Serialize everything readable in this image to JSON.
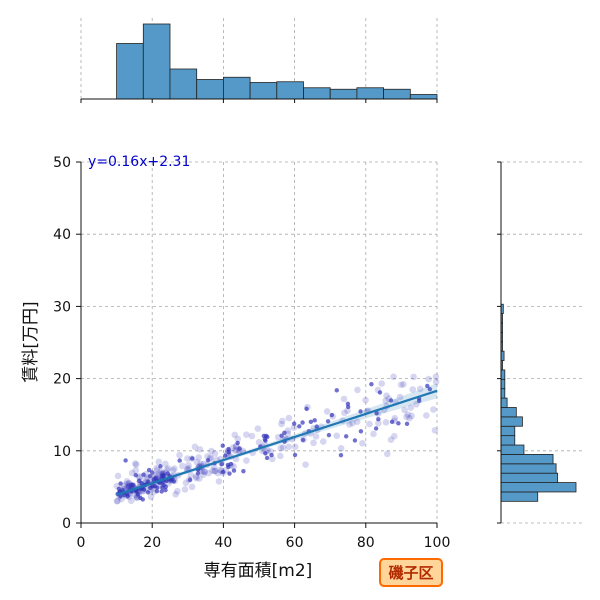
{
  "chart_data": {
    "type": "scatter",
    "title": "",
    "xlabel": "専有面積[m2]",
    "ylabel": "賃料[万円]",
    "xlim": [
      0,
      100
    ],
    "ylim": [
      0,
      50
    ],
    "x_ticks": [
      0,
      20,
      40,
      60,
      80,
      100
    ],
    "y_ticks": [
      0,
      10,
      20,
      30,
      40,
      50
    ],
    "grid": true,
    "regression": {
      "equation": "y=0.16x+2.31",
      "slope": 0.16,
      "intercept": 2.31,
      "x_range": [
        10,
        100
      ]
    },
    "marginal_x_histogram": {
      "bin_edges": [
        10,
        17.5,
        25,
        32.5,
        40,
        47.5,
        55,
        62.5,
        70,
        77.5,
        85,
        92.5,
        100
      ],
      "heights": [
        74,
        100,
        40,
        26,
        29,
        22,
        23,
        15,
        13,
        15,
        13,
        6
      ]
    },
    "marginal_y_histogram": {
      "bin_edges": [
        3,
        4.3,
        5.6,
        6.9,
        8.2,
        9.5,
        10.8,
        12.1,
        13.4,
        14.7,
        16,
        17.3,
        18.6,
        19.9,
        21.2,
        22.5,
        23.8,
        25.1,
        26.4,
        27.7,
        29,
        30.3
      ],
      "heights": [
        48,
        98,
        74,
        72,
        68,
        30,
        18,
        18,
        28,
        20,
        8,
        5,
        5,
        5,
        2,
        4,
        2,
        2,
        2,
        2,
        3
      ]
    },
    "annotation": "磯子区",
    "colors": {
      "bar": "#5499c7",
      "line": "#1f77b4",
      "point": "#3333bb",
      "badge_bg": "#ffd59a",
      "badge_border": "#ff6a00"
    }
  }
}
